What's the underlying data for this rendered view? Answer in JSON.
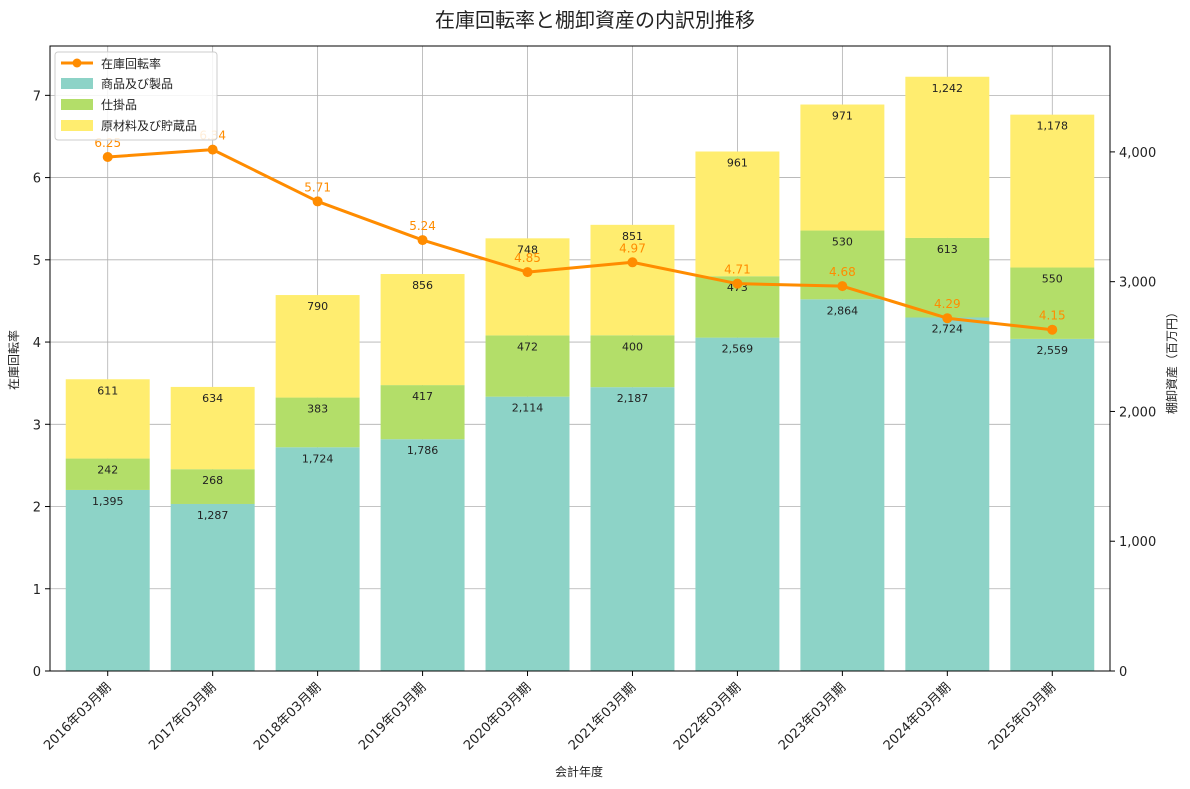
{
  "chart_data": {
    "type": "bar",
    "title": "在庫回転率と棚卸資産の内訳別推移",
    "xlabel": "会計年度",
    "ylabel_left": "在庫回転率",
    "ylabel_right": "棚卸資産（百万円）",
    "categories": [
      "2016年03月期",
      "2017年03月期",
      "2018年03月期",
      "2019年03月期",
      "2020年03月期",
      "2021年03月期",
      "2022年03月期",
      "2023年03月期",
      "2024年03月期",
      "2025年03月期"
    ],
    "stacked_series": [
      {
        "name": "商品及び製品",
        "color": "#8dd3c7",
        "values": [
          1395,
          1287,
          1724,
          1786,
          2114,
          2187,
          2569,
          2864,
          2724,
          2559
        ]
      },
      {
        "name": "仕掛品",
        "color": "#b3de69",
        "values": [
          242,
          268,
          383,
          417,
          472,
          400,
          473,
          530,
          613,
          550
        ]
      },
      {
        "name": "原材料及び貯蔵品",
        "color": "#ffed6f",
        "values": [
          611,
          634,
          790,
          856,
          748,
          851,
          961,
          971,
          1242,
          1178
        ]
      }
    ],
    "line_series": {
      "name": "在庫回転率",
      "color": "#ff8c00",
      "axis": "left",
      "values": [
        6.25,
        6.34,
        5.71,
        5.24,
        4.85,
        4.97,
        4.71,
        4.68,
        4.29,
        4.15
      ],
      "labels": [
        "6.25",
        "6.34",
        "5.71",
        "5.24",
        "4.85",
        "4.97",
        "4.71",
        "4.68",
        "4.29",
        "4.15"
      ]
    },
    "bar_labels": [
      [
        "1,395",
        "1,287",
        "1,724",
        "1,786",
        "2,114",
        "2,187",
        "2,569",
        "2,864",
        "2,724",
        "2,559"
      ],
      [
        "242",
        "268",
        "383",
        "417",
        "472",
        "400",
        "473",
        "530",
        "613",
        "550"
      ],
      [
        "611",
        "634",
        "790",
        "856",
        "748",
        "851",
        "961",
        "971",
        "1,242",
        "1,178"
      ]
    ],
    "ylim_left": [
      0,
      7.6
    ],
    "yticks_left": [
      0,
      1,
      2,
      3,
      4,
      5,
      6,
      7
    ],
    "ytick_labels_left": [
      "0",
      "1",
      "2",
      "3",
      "4",
      "5",
      "6",
      "7"
    ],
    "ylim_right": [
      0,
      4816
    ],
    "yticks_right": [
      0,
      1000,
      2000,
      3000,
      4000
    ],
    "ytick_labels_right": [
      "0",
      "1,000",
      "2,000",
      "3,000",
      "4,000"
    ],
    "grid": true,
    "legend_position": "top-left"
  }
}
